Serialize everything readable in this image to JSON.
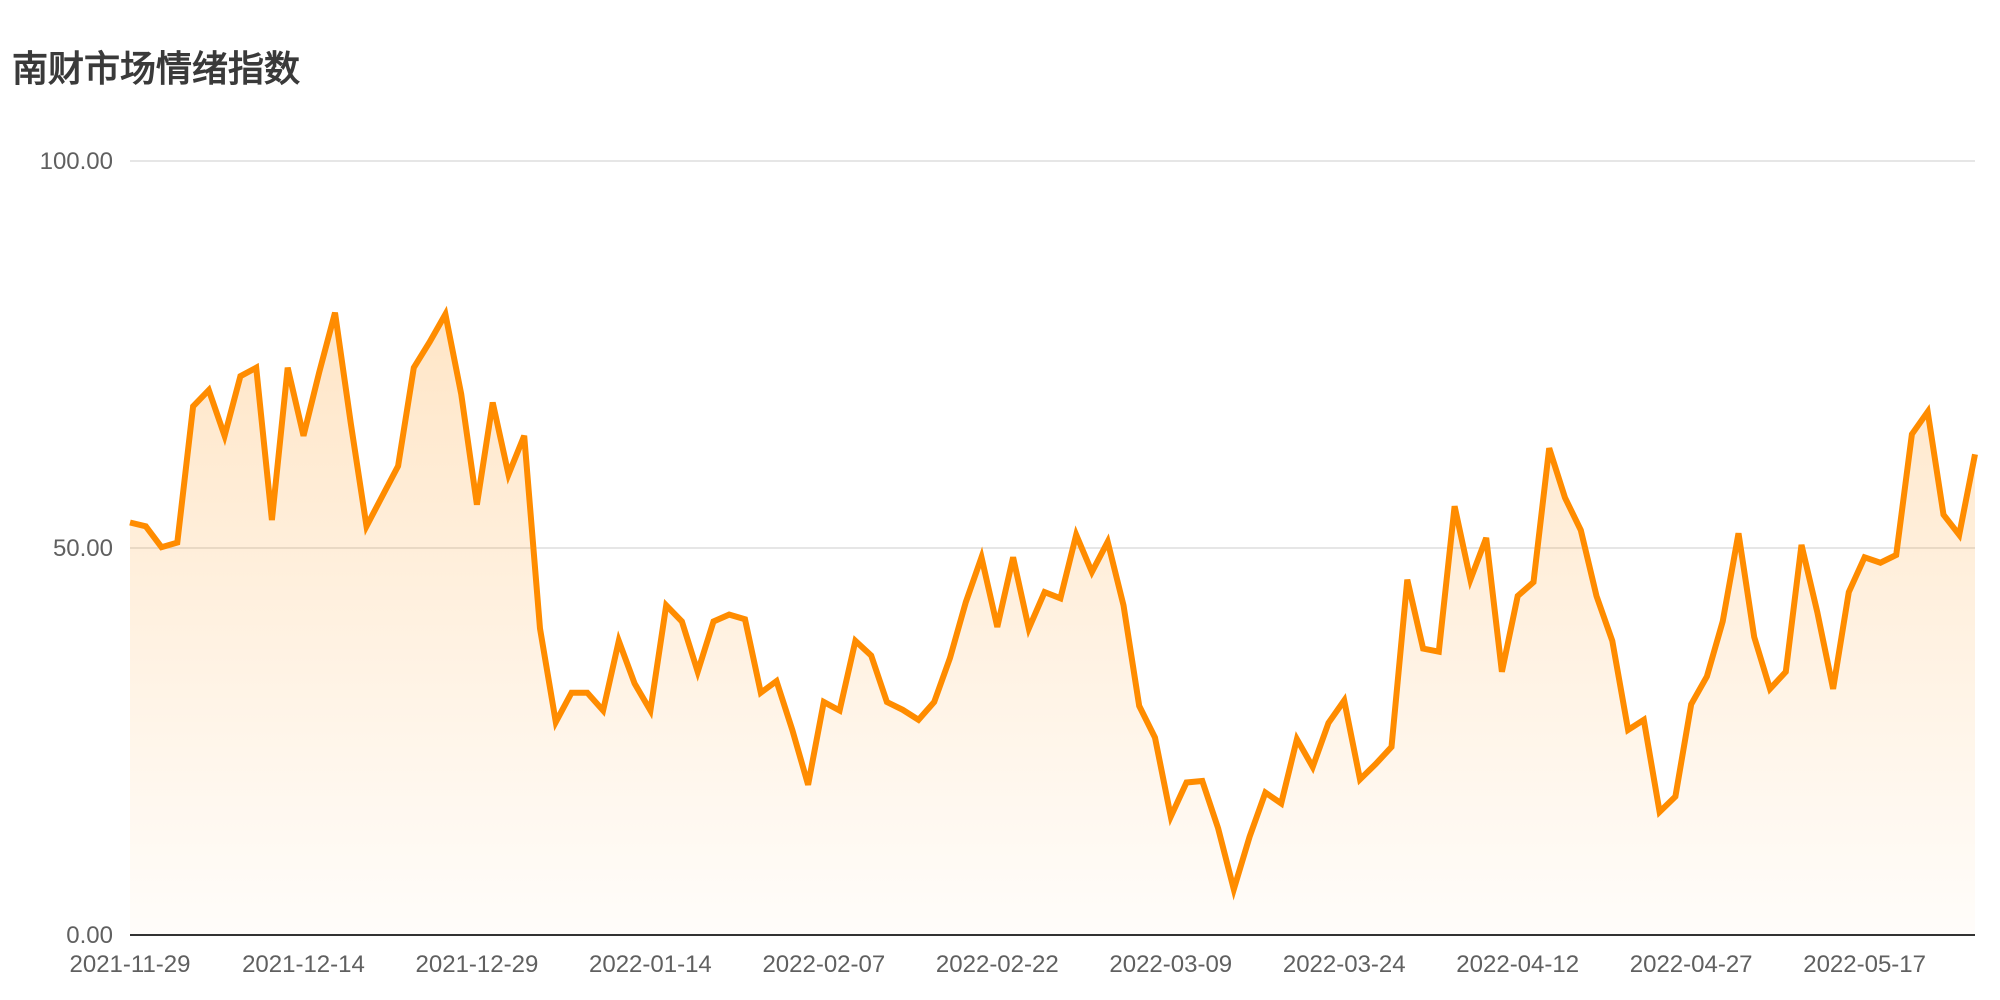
{
  "title": "南财市场情绪指数",
  "colors": {
    "line": "#FF8C00",
    "area": "#FF8C00",
    "grid": "#dddddd",
    "axis": "#333333"
  },
  "chart_data": {
    "type": "area",
    "title": "南财市场情绪指数",
    "xlabel": "",
    "ylabel": "",
    "ylim": [
      0,
      100
    ],
    "grid": true,
    "y_ticks": [
      "0.00",
      "50.00",
      "100.00"
    ],
    "x_tick_labels": [
      "2021-11-29",
      "2021-12-14",
      "2021-12-29",
      "2022-01-14",
      "2022-02-07",
      "2022-02-22",
      "2022-03-09",
      "2022-03-24",
      "2022-04-12",
      "2022-04-27",
      "2022-05-17"
    ],
    "x_tick_indices": [
      0,
      11,
      22,
      33,
      44,
      55,
      66,
      77,
      88,
      99,
      110
    ],
    "series": [
      {
        "values": [
          53.3,
          52.8,
          50.1,
          50.7,
          68.3,
          70.4,
          64.5,
          72.2,
          73.3,
          53.6,
          73.3,
          64.5,
          72.7,
          80.4,
          66.1,
          52.8,
          56.7,
          60.6,
          73.3,
          76.6,
          80.2,
          69.9,
          55.6,
          68.8,
          59.5,
          64.5,
          39.6,
          27.5,
          31.3,
          31.3,
          29.0,
          38.0,
          32.5,
          29.0,
          42.6,
          40.5,
          34.0,
          40.5,
          41.4,
          40.8,
          31.3,
          32.8,
          26.5,
          19.4,
          30.1,
          29.0,
          38.0,
          36.1,
          30.1,
          29.1,
          27.8,
          30.1,
          35.8,
          43.0,
          48.8,
          39.8,
          48.8,
          39.6,
          44.3,
          43.5,
          51.7,
          46.9,
          50.8,
          42.6,
          29.6,
          25.5,
          15.3,
          19.7,
          19.9,
          13.8,
          5.9,
          12.7,
          18.4,
          17.0,
          25.3,
          21.7,
          27.4,
          30.3,
          20.1,
          22.1,
          24.3,
          45.9,
          37.0,
          36.6,
          55.4,
          45.9,
          51.3,
          34.0,
          43.8,
          45.6,
          62.9,
          56.5,
          52.3,
          43.8,
          38.0,
          26.5,
          27.8,
          15.9,
          17.9,
          29.8,
          33.4,
          40.5,
          51.9,
          38.5,
          31.8,
          34.0,
          50.4,
          41.7,
          31.8,
          44.3,
          48.8,
          48.1,
          49.1,
          64.7,
          67.6,
          54.3,
          51.7,
          62.1
        ]
      }
    ]
  }
}
